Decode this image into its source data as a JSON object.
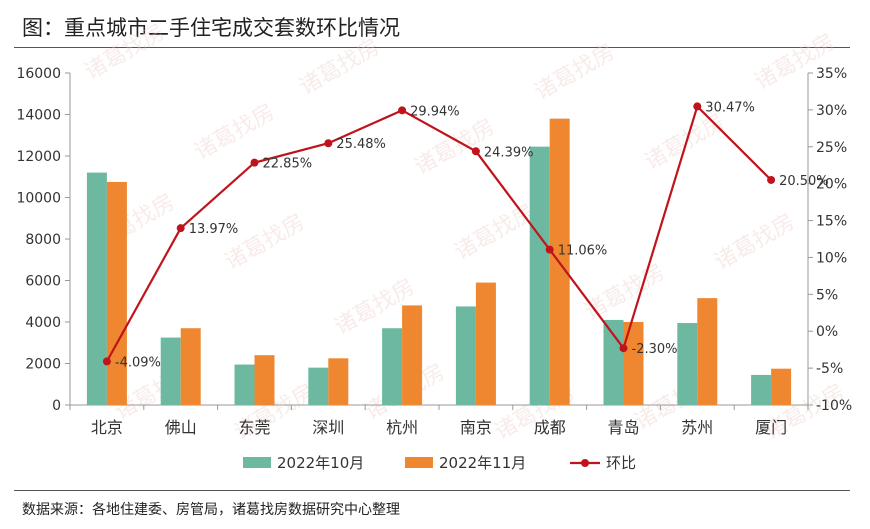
{
  "title": "图：重点城市二手住宅成交套数环比情况",
  "source": "数据来源：各地住建委、房管局，诸葛找房数据研究中心整理",
  "watermark": "诸葛找房",
  "colors": {
    "oct": "#6db8a0",
    "nov": "#ef8730",
    "mom": "#c0141c",
    "axis": "#999999"
  },
  "chart_data": {
    "type": "bar",
    "categories": [
      "北京",
      "佛山",
      "东莞",
      "深圳",
      "杭州",
      "南京",
      "成都",
      "青岛",
      "苏州",
      "厦门"
    ],
    "series": [
      {
        "name": "2022年10月",
        "type": "bar",
        "axis": "left",
        "values": [
          11200,
          3250,
          1950,
          1800,
          3700,
          4750,
          12450,
          4100,
          3950,
          1450
        ]
      },
      {
        "name": "2022年11月",
        "type": "bar",
        "axis": "left",
        "values": [
          10750,
          3700,
          2400,
          2250,
          4800,
          5900,
          13800,
          4000,
          5150,
          1750
        ]
      },
      {
        "name": "环比",
        "type": "line",
        "axis": "right",
        "values": [
          -4.09,
          13.97,
          22.85,
          25.48,
          29.94,
          24.39,
          11.06,
          -2.3,
          30.47,
          20.5
        ],
        "labels": [
          "-4.09%",
          "13.97%",
          "22.85%",
          "25.48%",
          "29.94%",
          "24.39%",
          "11.06%",
          "-2.30%",
          "30.47%",
          "20.50%"
        ]
      }
    ],
    "y_left": {
      "min": 0,
      "max": 16000,
      "ticks": [
        "0",
        "2000",
        "4000",
        "6000",
        "8000",
        "10000",
        "12000",
        "14000",
        "16000"
      ]
    },
    "y_right": {
      "min": -10,
      "max": 35,
      "ticks": [
        "-10%",
        "-5%",
        "0%",
        "5%",
        "10%",
        "15%",
        "20%",
        "25%",
        "30%",
        "35%"
      ]
    },
    "grid": false,
    "legend_position": "bottom"
  }
}
